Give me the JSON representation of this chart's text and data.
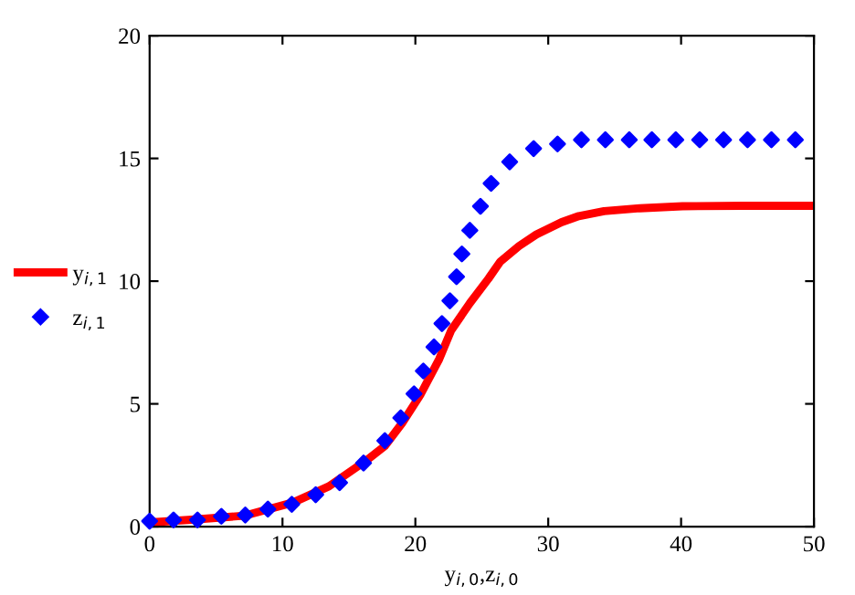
{
  "chart_data": {
    "type": "line",
    "xlabel": "y$_{i,0}$,z$_{i,0}$",
    "xlim": [
      0,
      50
    ],
    "xticks": [
      0,
      10,
      20,
      30,
      40,
      50
    ],
    "ylim": [
      0,
      20
    ],
    "yticks": [
      0,
      5,
      10,
      15,
      20
    ],
    "grid": false,
    "legend": "left",
    "series": [
      {
        "name": "y$_{i,1}$",
        "color": "#ff0000",
        "line_style": "solid",
        "marker": "none",
        "x": [
          0,
          3.4,
          7.1,
          10.8,
          13.5,
          16.3,
          17.7,
          19.0,
          20.4,
          21.8,
          22.7,
          24.1,
          25.5,
          26.4,
          27.8,
          29.1,
          31.0,
          32.3,
          34.2,
          36.9,
          40.1,
          44.7,
          50
        ],
        "values": [
          0.17,
          0.29,
          0.44,
          0.98,
          1.64,
          2.69,
          3.28,
          4.21,
          5.39,
          6.83,
          8.0,
          9.1,
          10.1,
          10.8,
          11.43,
          11.9,
          12.4,
          12.65,
          12.85,
          12.97,
          13.05,
          13.07,
          13.07
        ]
      },
      {
        "name": "z$_{i,1}$",
        "type": "scatter",
        "color": "#0000ff",
        "marker": "diamond",
        "x": [
          0,
          1.8,
          3.6,
          5.4,
          7.2,
          8.9,
          10.7,
          12.5,
          14.3,
          16.1,
          17.7,
          18.9,
          19.9,
          20.6,
          21.4,
          22.0,
          22.6,
          23.1,
          23.5,
          24.1,
          24.9,
          25.7,
          27.1,
          28.9,
          30.7,
          32.5,
          34.3,
          36.1,
          37.8,
          39.6,
          41.4,
          43.2,
          45.0,
          46.8,
          48.6
        ],
        "values": [
          0.22,
          0.27,
          0.27,
          0.42,
          0.47,
          0.71,
          0.91,
          1.3,
          1.79,
          2.59,
          3.5,
          4.43,
          5.41,
          6.34,
          7.32,
          8.27,
          9.2,
          10.18,
          11.11,
          12.07,
          13.05,
          13.98,
          14.86,
          15.4,
          15.59,
          15.76,
          15.76,
          15.76,
          15.76,
          15.76,
          15.76,
          15.76,
          15.76,
          15.76,
          15.76
        ]
      }
    ]
  }
}
